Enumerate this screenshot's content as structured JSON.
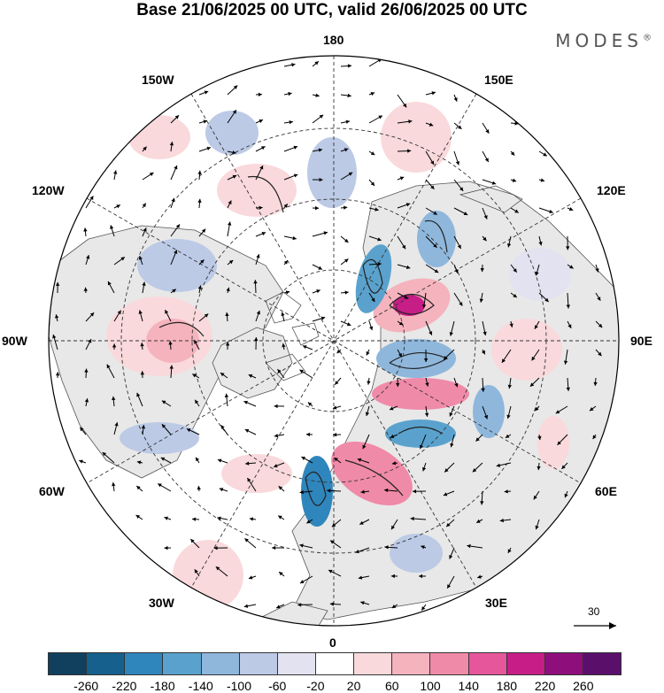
{
  "title": "Base 21/06/2025 00 UTC, valid 26/06/2025 00 UTC",
  "brand": "MODES",
  "brand_mark": "®",
  "longitude_labels": {
    "n180": "180",
    "e150": "150E",
    "e120": "120E",
    "e90": "90E",
    "e60": "60E",
    "e30": "30E",
    "s0": "0",
    "w30": "30W",
    "w60": "60W",
    "w90": "90W",
    "w120": "120W",
    "w150": "150W"
  },
  "wind_scale_label": "30",
  "colorbar": {
    "colors": [
      "#10405e",
      "#16608e",
      "#2f86bd",
      "#5aa2cd",
      "#8fb7dc",
      "#bccae6",
      "#e3e2f0",
      "#ffffff",
      "#f9d9dc",
      "#f5b3bd",
      "#f08aa9",
      "#e6569b",
      "#c71d86",
      "#8e0f7c",
      "#5a0f6b"
    ],
    "ticks": [
      "-260",
      "-220",
      "-180",
      "-140",
      "-100",
      "-60",
      "-20",
      "20",
      "60",
      "100",
      "140",
      "180",
      "220",
      "260"
    ]
  }
}
